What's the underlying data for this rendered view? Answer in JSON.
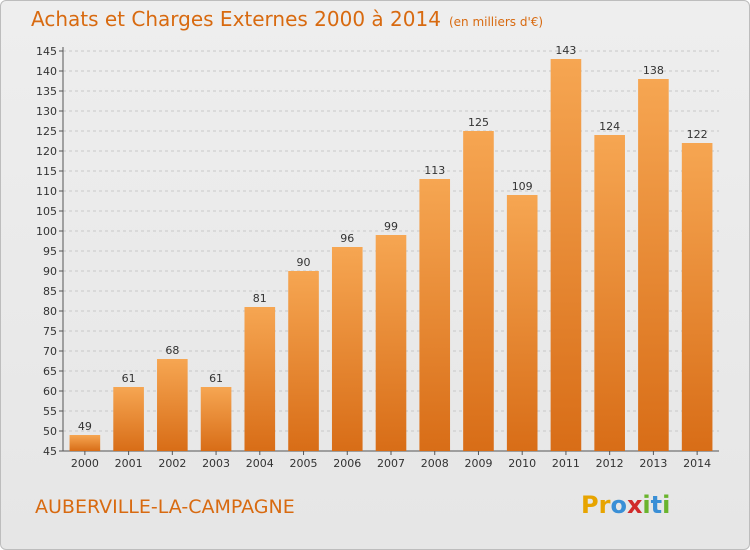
{
  "header": {
    "title": "Achats et Charges Externes 2000 à 2014",
    "subtitle": "(en milliers d'€)"
  },
  "footer": {
    "commune": "AUBERVILLE-LA-CAMPAGNE",
    "logo_letters": [
      "P",
      "r",
      "o",
      "x",
      "i",
      "t",
      "i"
    ],
    "logo_colors": [
      "#e7a400",
      "#e7a400",
      "#3a8fd6",
      "#d12b2b",
      "#6ab42d",
      "#3a8fd6",
      "#6ab42d"
    ]
  },
  "colors": {
    "title": "#d86a10",
    "bar_top": "#f6a652",
    "bar_bottom": "#d86d17",
    "grid": "#c8c8c8"
  },
  "chart_data": {
    "type": "bar",
    "title": "Achats et Charges Externes 2000 à 2014",
    "subtitle": "(en milliers d'€)",
    "categories": [
      "2000",
      "2001",
      "2002",
      "2003",
      "2004",
      "2005",
      "2006",
      "2007",
      "2008",
      "2009",
      "2010",
      "2011",
      "2012",
      "2013",
      "2014"
    ],
    "values": [
      49,
      61,
      68,
      61,
      81,
      90,
      96,
      99,
      113,
      125,
      109,
      143,
      124,
      138,
      122
    ],
    "ylim": [
      45,
      145
    ],
    "ytick_step": 5,
    "yticks": [
      "45",
      "50",
      "55",
      "60",
      "65",
      "70",
      "75",
      "80",
      "85",
      "90",
      "95",
      "100",
      "105",
      "110",
      "115",
      "120",
      "125",
      "130",
      "135",
      "140",
      "145"
    ],
    "grid": true,
    "legend": "none"
  }
}
